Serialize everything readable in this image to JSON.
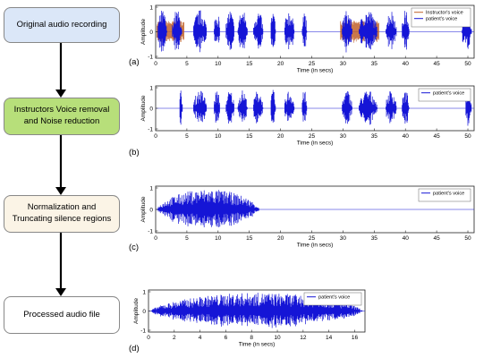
{
  "flow_steps": [
    {
      "label": "Original audio recording",
      "fill": "#dbe7f8"
    },
    {
      "label": "Instructors Voice removal and Noise reduction",
      "fill": "#b7df7a"
    },
    {
      "label": "Normalization and Truncating silence regions",
      "fill": "#fbf4e6"
    },
    {
      "label": "Processed audio file",
      "fill": "#ffffff"
    }
  ],
  "colors": {
    "patient": "#1515d6",
    "instructor": "#c0602a",
    "arrow": "#000000"
  },
  "chart_data": [
    {
      "type": "line",
      "panel_label": "(a)",
      "ylabel": "Amplitude",
      "xlabel": "Time (in secs)",
      "xlim": [
        0,
        51
      ],
      "ylim": [
        -1,
        1
      ],
      "xticks": [
        0,
        5,
        10,
        15,
        20,
        25,
        30,
        35,
        40,
        45,
        50
      ],
      "yticks": [
        1,
        0,
        -1
      ],
      "legend": [
        "Instructor's voice",
        "patient's voice"
      ],
      "legend_position": "top-right",
      "series": [
        {
          "name": "Instructor's voice",
          "segments": [
            [
              0.2,
              4.6
            ],
            [
              29.6,
              35.8
            ]
          ],
          "amplitude": 0.45
        },
        {
          "name": "patient's voice",
          "segments": [
            [
              0.3,
              1.8
            ],
            [
              2.6,
              4.2
            ],
            [
              6.0,
              8.2
            ],
            [
              9.3,
              10.3
            ],
            [
              11.2,
              12.6
            ],
            [
              13.1,
              14.7
            ],
            [
              15.6,
              17.2
            ],
            [
              18.4,
              19.2
            ],
            [
              20.6,
              22.2
            ],
            [
              23.4,
              24.2
            ],
            [
              29.8,
              31.5
            ],
            [
              32.5,
              35.5
            ],
            [
              36.8,
              38.6
            ],
            [
              39.4,
              40.6
            ],
            [
              49.0,
              50.6
            ]
          ],
          "peak": 0.9
        }
      ]
    },
    {
      "type": "line",
      "panel_label": "(b)",
      "ylabel": "Amplitude",
      "xlabel": "Time (in secs)",
      "xlim": [
        0,
        51
      ],
      "ylim": [
        -1,
        1
      ],
      "xticks": [
        0,
        5,
        10,
        15,
        20,
        25,
        30,
        35,
        40,
        45,
        50
      ],
      "yticks": [
        1,
        0,
        -1
      ],
      "legend": [
        "patient's voice"
      ],
      "legend_position": "top-right",
      "series": [
        {
          "name": "patient's voice",
          "segments": [
            [
              3.8,
              4.3
            ],
            [
              6.0,
              8.2
            ],
            [
              9.3,
              10.3
            ],
            [
              11.2,
              12.6
            ],
            [
              13.1,
              14.7
            ],
            [
              15.6,
              17.2
            ],
            [
              18.4,
              19.2
            ],
            [
              20.6,
              22.2
            ],
            [
              23.4,
              24.2
            ],
            [
              29.8,
              31.5
            ],
            [
              32.5,
              35.5
            ],
            [
              36.8,
              38.6
            ],
            [
              39.4,
              40.6
            ],
            [
              49.6,
              50.6
            ]
          ],
          "peak": 0.9
        }
      ]
    },
    {
      "type": "line",
      "panel_label": "(c)",
      "ylabel": "Amplitude",
      "xlabel": "Time (in secs)",
      "xlim": [
        0,
        51
      ],
      "ylim": [
        -1,
        1
      ],
      "xticks": [
        0,
        5,
        10,
        15,
        20,
        25,
        30,
        35,
        40,
        45,
        50
      ],
      "yticks": [
        1,
        0,
        -1
      ],
      "legend": [
        "patient's voice"
      ],
      "legend_position": "top-right",
      "series": [
        {
          "name": "patient's voice",
          "segments": [
            [
              0.2,
              16.6
            ]
          ],
          "peak": 0.95
        }
      ]
    },
    {
      "type": "line",
      "panel_label": "(d)",
      "ylabel": "Amplitude",
      "xlabel": "Time (in secs)",
      "xlim": [
        0,
        16.8
      ],
      "ylim": [
        -1,
        1
      ],
      "xticks": [
        0,
        2,
        4,
        6,
        8,
        10,
        12,
        14,
        16
      ],
      "yticks": [
        1,
        0,
        -1
      ],
      "legend": [
        "patient's voice"
      ],
      "legend_position": "top-right",
      "series": [
        {
          "name": "patient's voice",
          "segments": [
            [
              0.2,
              16.6
            ]
          ],
          "peak": 0.95
        }
      ]
    }
  ]
}
